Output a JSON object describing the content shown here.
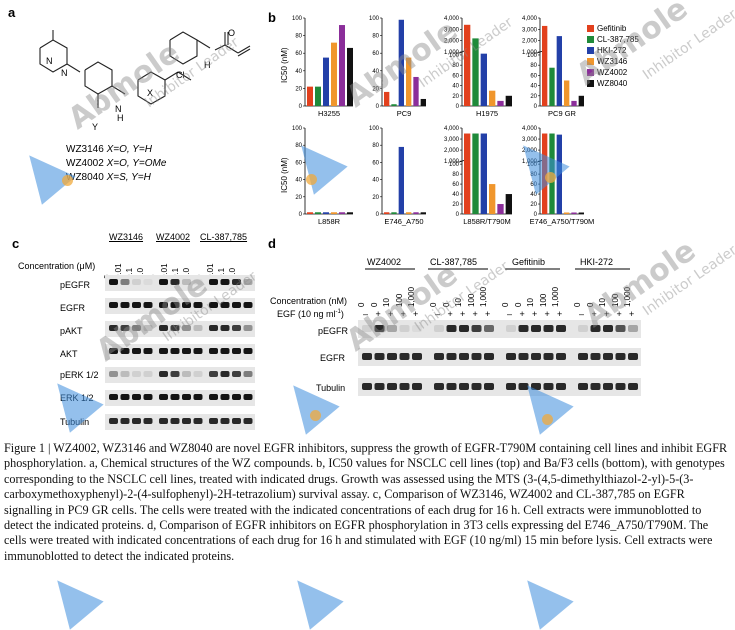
{
  "panel_labels": {
    "a": "a",
    "b": "b",
    "c": "c",
    "d": "d"
  },
  "panel_a": {
    "compounds": [
      {
        "name": "WZ3146",
        "desc": "X=O, Y=H"
      },
      {
        "name": "WZ4002",
        "desc": "X=O, Y=OMe"
      },
      {
        "name": "WZ8040",
        "desc": "X=S, Y=H"
      }
    ],
    "structure_labels": {
      "N1": "N",
      "N2": "N",
      "N_amine": "N",
      "H": "H",
      "NH": "N",
      "Cl": "Cl",
      "X": "X",
      "Y": "Y",
      "O": "O",
      "H2": "H"
    }
  },
  "panel_b": {
    "ylabel": "IC50 (nM)",
    "legend": [
      {
        "name": "Gefitinib",
        "color": "#e2401d"
      },
      {
        "name": "CL-387,785",
        "color": "#1f8a3a"
      },
      {
        "name": "HKI-272",
        "color": "#2340a8"
      },
      {
        "name": "WZ3146",
        "color": "#f0962c"
      },
      {
        "name": "WZ4002",
        "color": "#8b2e9a"
      },
      {
        "name": "WZ8040",
        "color": "#111111"
      }
    ]
  },
  "chart_data": [
    {
      "type": "bar",
      "title": "H3255",
      "categories": [
        "Gefitinib",
        "CL-387,785",
        "HKI-272",
        "WZ3146",
        "WZ4002",
        "WZ8040"
      ],
      "values": [
        22,
        22,
        55,
        72,
        92,
        66
      ],
      "ylim": [
        0,
        100
      ],
      "yticks": [
        "0",
        "20",
        "40",
        "60",
        "80",
        "100"
      ]
    },
    {
      "type": "bar",
      "title": "PC9",
      "categories": [
        "Gefitinib",
        "CL-387,785",
        "HKI-272",
        "WZ3146",
        "WZ4002",
        "WZ8040"
      ],
      "values": [
        16,
        2,
        98,
        55,
        33,
        8
      ],
      "ylim": [
        0,
        100
      ],
      "yticks": [
        "0",
        "20",
        "40",
        "60",
        "80",
        "100"
      ]
    },
    {
      "type": "bar",
      "title": "H1975",
      "categories": [
        "Gefitinib",
        "CL-387,785",
        "HKI-272",
        "WZ3146",
        "WZ4002",
        "WZ8040"
      ],
      "values": [
        3400,
        2200,
        850,
        30,
        10,
        20
      ],
      "ylim": [
        0,
        4000
      ],
      "yticks": [
        "0",
        "20",
        "40",
        "60",
        "80",
        "100",
        "1,000",
        "2,000",
        "3,000",
        "4,000"
      ],
      "broken_axis": true
    },
    {
      "type": "bar",
      "title": "PC9 GR",
      "categories": [
        "Gefitinib",
        "CL-387,785",
        "HKI-272",
        "WZ3146",
        "WZ4002",
        "WZ8040"
      ],
      "values": [
        3300,
        75,
        2400,
        50,
        10,
        20
      ],
      "ylim": [
        0,
        4000
      ],
      "yticks": [
        "0",
        "20",
        "40",
        "60",
        "80",
        "100",
        "1,000",
        "2,000",
        "3,000",
        "4,000"
      ],
      "broken_axis": true
    },
    {
      "type": "bar",
      "title": "L858R",
      "categories": [
        "Gefitinib",
        "CL-387,785",
        "HKI-272",
        "WZ3146",
        "WZ4002",
        "WZ8040"
      ],
      "values": [
        2,
        2,
        2,
        2,
        2,
        2
      ],
      "ylim": [
        0,
        100
      ],
      "yticks": [
        "0",
        "20",
        "40",
        "60",
        "80",
        "100"
      ]
    },
    {
      "type": "bar",
      "title": "E746_A750",
      "categories": [
        "Gefitinib",
        "CL-387,785",
        "HKI-272",
        "WZ3146",
        "WZ4002",
        "WZ8040"
      ],
      "values": [
        2,
        2,
        78,
        2,
        2,
        2
      ],
      "ylim": [
        0,
        100
      ],
      "yticks": [
        "0",
        "20",
        "40",
        "60",
        "80",
        "100"
      ]
    },
    {
      "type": "bar",
      "title": "L858R/T790M",
      "categories": [
        "Gefitinib",
        "CL-387,785",
        "HKI-272",
        "WZ3146",
        "WZ4002",
        "WZ8040"
      ],
      "values": [
        3500,
        3500,
        3500,
        60,
        20,
        40
      ],
      "ylim": [
        0,
        4000
      ],
      "yticks": [
        "0",
        "20",
        "40",
        "60",
        "80",
        "100",
        "1,000",
        "2,000",
        "3,000",
        "4,000"
      ],
      "broken_axis": true
    },
    {
      "type": "bar",
      "title": "E746_A750/T790M",
      "categories": [
        "Gefitinib",
        "CL-387,785",
        "HKI-272",
        "WZ3146",
        "WZ4002",
        "WZ8040"
      ],
      "values": [
        3500,
        3500,
        3400,
        3,
        3,
        3
      ],
      "ylim": [
        0,
        4000
      ],
      "yticks": [
        "0",
        "20",
        "40",
        "60",
        "80",
        "100",
        "1,000",
        "2,000",
        "3,000",
        "4,000"
      ],
      "broken_axis": true
    }
  ],
  "panel_c": {
    "drugs": [
      "WZ3146",
      "WZ4002",
      "CL-387,785"
    ],
    "concentration_label": "Concentration (μM)",
    "concentrations": [
      "0",
      "0.01",
      "0.1",
      "1.0"
    ],
    "rows": [
      "pEGFR",
      "EGFR",
      "pAKT",
      "AKT",
      "pERK 1/2",
      "ERK 1/2",
      "Tubulin"
    ]
  },
  "panel_d": {
    "drugs": [
      "WZ4002",
      "CL-387,785",
      "Gefitinib",
      "HKI-272"
    ],
    "concentration_label": "Concentration (nM)",
    "egf_label": "EGF (10 ng ml",
    "egf_label_sup": "-1",
    "egf_label_end": ")",
    "concentrations": [
      "0",
      "0",
      "10",
      "100",
      "1,000"
    ],
    "egf": [
      "–",
      "+",
      "+",
      "+",
      "+"
    ],
    "rows": [
      "pEGFR",
      "EGFR",
      "Tubulin"
    ]
  },
  "caption": "Figure 1 | WZ4002, WZ3146 and WZ8040 are novel EGFR inhibitors, suppress the growth of EGFR-T790M containing cell lines and inhibit EGFR phosphorylation. a, Chemical structures of the WZ compounds. b, IC50 values for NSCLC cell lines (top) and Ba/F3 cells (bottom), with genotypes corresponding to the NSCLC cell lines, treated with indicated drugs. Growth was assessed using the MTS (3-(4,5-dimethylthiazol-2-yl)-5-(3- carboxymethoxyphenyl)-2-(4-sulfophenyl)-2H-tetrazolium) survival assay. c, Comparison of WZ3146, WZ4002 and CL-387,785 on EGFR signalling in PC9 GR cells. The cells were treated with the indicated concentrations of each drug for 16 h. Cell extracts were immunoblotted to detect the indicated proteins. d, Comparison of EGFR inhibitors on EGFR phosphorylation in 3T3 cells expressing del E746_A750/T790M. The cells were treated with indicated concentrations of each drug for 16 h and stimulated with EGF (10 ng/ml) 15 min before lysis. Cell extracts were immunoblotted to detect the indicated proteins.",
  "watermark": {
    "brand": "Abmole",
    "tagline": "Inhibitor Leader"
  }
}
